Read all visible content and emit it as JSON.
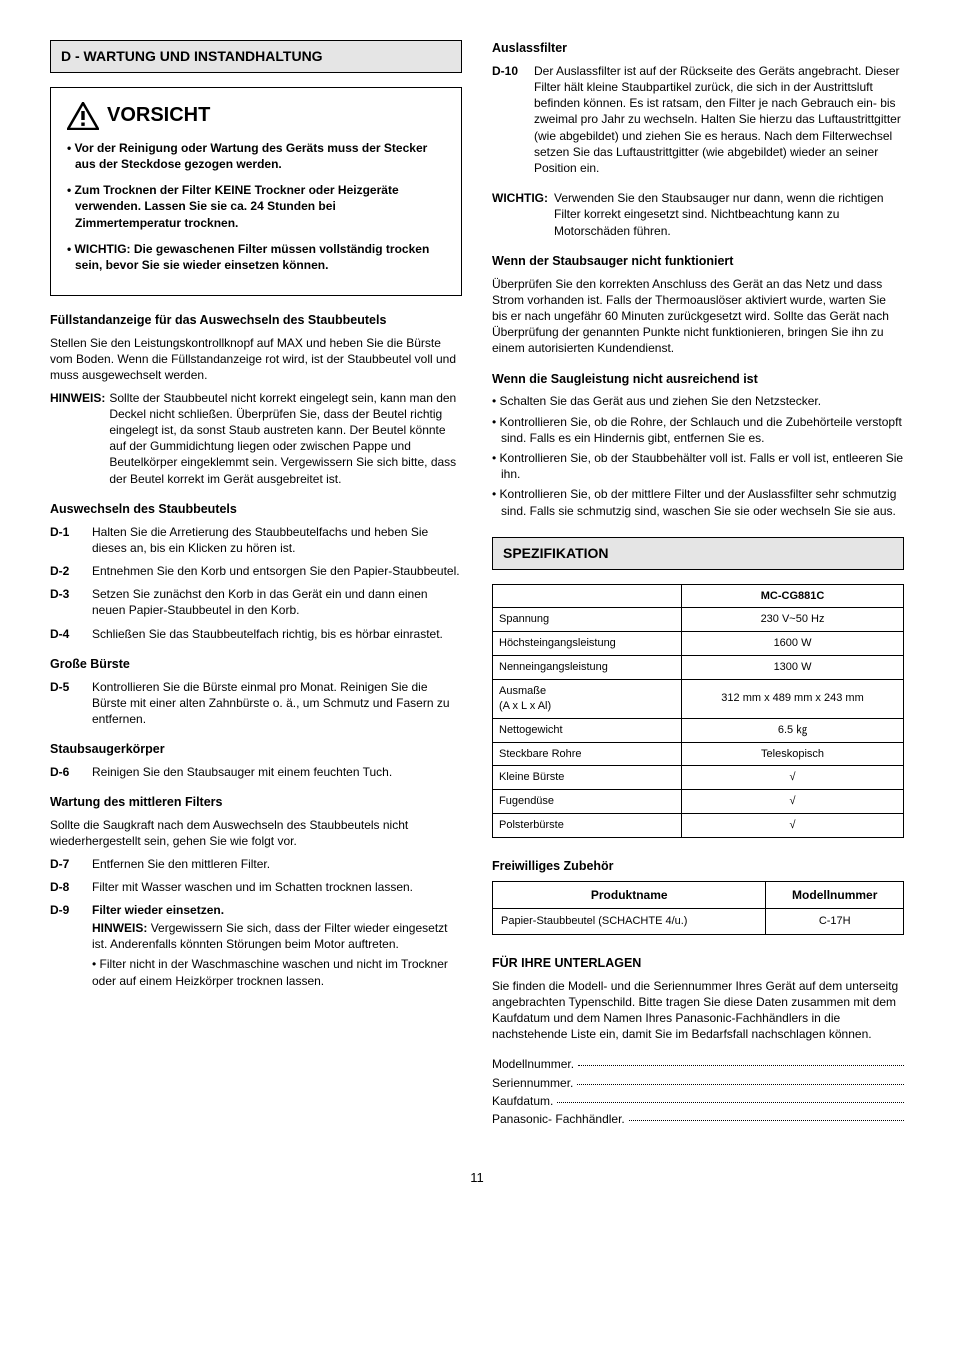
{
  "page_number": "11",
  "left": {
    "section_title": "D - WARTUNG UND INSTANDHALTUNG",
    "vorsicht": {
      "heading": "VORSICHT",
      "items": [
        "• Vor der Reinigung oder Wartung des Geräts muss der Stecker aus der Steckdose gezogen werden.",
        "• Zum Trocknen der Filter KEINE Trockner oder Heizgeräte verwenden. Lassen Sie sie ca. 24 Stunden bei Zimmertemperatur trocknen.",
        "• WICHTIG: Die gewaschenen Filter müssen vollständig trocken sein, bevor Sie sie wieder einsetzen können."
      ]
    },
    "fuellstand": {
      "heading": "Füllstandanzeige für das Auswechseln des Staubbeutels",
      "para": "Stellen Sie den Leistungskontrollknopf auf MAX und heben Sie die Bürste vom Boden. Wenn die Füllstandanzeige rot wird, ist der Staubbeutel voll und muss ausgewechselt werden.",
      "hinweis_label": "HINWEIS:",
      "hinweis_body": "Sollte der Staubbeutel nicht korrekt eingelegt sein, kann man den Deckel nicht schließen. Überprüfen Sie, dass der Beutel richtig eingelegt ist, da sonst Staub austreten kann. Der Beutel könnte auf der Gummidichtung liegen oder zwischen Pappe und Beutelkörper eingeklemmt sein. Vergewissern Sie sich bitte, dass der Beutel korrekt im Gerät ausgebreitet ist."
    },
    "auswechseln": {
      "heading": "Auswechseln des Staubbeutels",
      "steps": [
        {
          "label": "D-1",
          "body": "Halten Sie die Arretierung des Staubbeutelfachs und heben Sie dieses an, bis ein Klicken zu hören ist."
        },
        {
          "label": "D-2",
          "body": "Entnehmen Sie den Korb und entsorgen Sie den Papier-Staubbeutel."
        },
        {
          "label": "D-3",
          "body": "Setzen Sie zunächst den Korb in das Gerät ein und dann einen neuen Papier-Staubbeutel in den Korb."
        },
        {
          "label": "D-4",
          "body": "Schließen Sie das Staubbeutelfach richtig, bis es hörbar einrastet."
        }
      ]
    },
    "grosse_buerste": {
      "heading": "Große Bürste",
      "steps": [
        {
          "label": "D-5",
          "body": "Kontrollieren Sie die Bürste einmal pro Monat. Reinigen Sie die Bürste mit einer alten Zahnbürste o. ä., um Schmutz und Fasern zu entfernen."
        }
      ]
    },
    "koerper": {
      "heading": "Staubsaugerkörper",
      "steps": [
        {
          "label": "D-6",
          "body": "Reinigen Sie den Staubsauger mit einem feuchten Tuch."
        }
      ]
    },
    "mittlerer_filter": {
      "heading": "Wartung des mittleren Filters",
      "para": "Sollte die Saugkraft nach dem Auswechseln des Staubbeutels nicht wiederhergestellt sein, gehen Sie wie folgt vor.",
      "steps": [
        {
          "label": "D-7",
          "body": "Entfernen Sie den mittleren Filter."
        },
        {
          "label": "D-8",
          "body": "Filter mit Wasser waschen und im Schatten trocknen lassen."
        }
      ],
      "d9": {
        "label": "D-9",
        "title": "Filter wieder einsetzen.",
        "hinweis_label": "HINWEIS:",
        "hinweis_body": "Vergewissern Sie sich, dass der Filter wieder eingesetzt ist. Anderenfalls könnten Störungen beim Motor auftreten.",
        "bullet": "• Filter nicht in der Waschmaschine waschen und nicht im Trockner oder auf einem Heizkörper trocknen lassen."
      }
    }
  },
  "right": {
    "auslass": {
      "heading": "Auslassfilter",
      "step": {
        "label": "D-10",
        "body": "Der Auslassfilter ist auf der Rückseite des Geräts angebracht. Dieser Filter hält kleine Staubpartikel zurück, die sich in der Austrittsluft befinden können. Es ist ratsam, den Filter je nach Gebrauch ein- bis zweimal pro Jahr zu wechseln. Halten Sie hierzu das Luftaustrittgitter (wie abgebildet) und ziehen Sie es heraus. Nach dem Filterwechsel setzen Sie das Luftaustrittgitter (wie abgebildet) wieder an seiner Position ein."
      },
      "wichtig_label": "WICHTIG:",
      "wichtig_body": "Verwenden Sie den Staubsauger nur dann, wenn die richtigen Filter korrekt eingesetzt sind. Nichtbeachtung kann zu Motorschäden führen."
    },
    "nicht_funktioniert": {
      "heading": "Wenn der Staubsauger nicht funktioniert",
      "para": "Überprüfen Sie den korrekten Anschluss des Gerät an das Netz und dass Strom vorhanden ist. Falls der Thermoauslöser aktiviert wurde, warten Sie bis er nach ungefähr 60 Minuten zurückgesetzt wird. Sollte das Gerät nach Überprüfung der genannten Punkte nicht funktionieren, bringen Sie ihn zu einem autorisierten Kundendienst."
    },
    "saugleistung": {
      "heading": "Wenn die Saugleistung nicht ausreichend ist",
      "bullets": [
        "• Schalten Sie das Gerät aus und ziehen Sie den Netzstecker.",
        "• Kontrollieren Sie, ob die Rohre, der Schlauch und die Zubehörteile verstopft sind. Falls es ein Hindernis gibt, entfernen Sie es.",
        "• Kontrollieren Sie, ob der Staubbehälter voll ist. Falls er voll ist, entleeren Sie ihn.",
        "• Kontrollieren Sie, ob der mittlere Filter und der Auslassfilter sehr schmutzig sind. Falls sie schmutzig sind, waschen Sie sie oder wechseln Sie sie aus."
      ]
    },
    "spec_title": "SPEZIFIKATION",
    "spec": {
      "model_header": "MC-CG881C",
      "rows": [
        {
          "label": "Spannung",
          "value": "230 V~50 Hz"
        },
        {
          "label": "Höchsteingangsleistung",
          "value": "1600 W"
        },
        {
          "label": "Nenneingangsleistung",
          "value": "1300 W"
        },
        {
          "label": "Ausmaße\n(A x L x Al)",
          "value": "312 mm x 489 mm x 243 mm"
        },
        {
          "label": "Nettogewicht",
          "value": "6.5 ㎏"
        },
        {
          "label": "Steckbare Rohre",
          "value": "Teleskopisch"
        },
        {
          "label": "Kleine Bürste",
          "value": "√"
        },
        {
          "label": "Fugendüse",
          "value": "√"
        },
        {
          "label": "Polsterbürste",
          "value": "√"
        }
      ]
    },
    "zubehoer": {
      "heading": "Freiwilliges Zubehör",
      "headers": [
        "Produktname",
        "Modellnummer"
      ],
      "rows": [
        {
          "name": "Papier-Staubbeutel (SCHACHTE 4/u.)",
          "model": "C-17H"
        }
      ]
    },
    "unterlagen": {
      "heading": "FÜR IHRE UNTERLAGEN",
      "para": "Sie finden die Modell- und die Seriennummer Ihres Gerät auf dem unterseitg angebrachten Typenschild. Bitte tragen Sie diese Daten zusammen mit dem Kaufdatum und dem Namen Ihres Panasonic-Fachhändlers in die nachstehende Liste ein, damit Sie im Bedarfsfall nachschlagen können.",
      "lines": [
        "Modellnummer.",
        "Seriennummer.",
        "Kaufdatum.",
        "Panasonic- Fachhändler."
      ]
    }
  }
}
